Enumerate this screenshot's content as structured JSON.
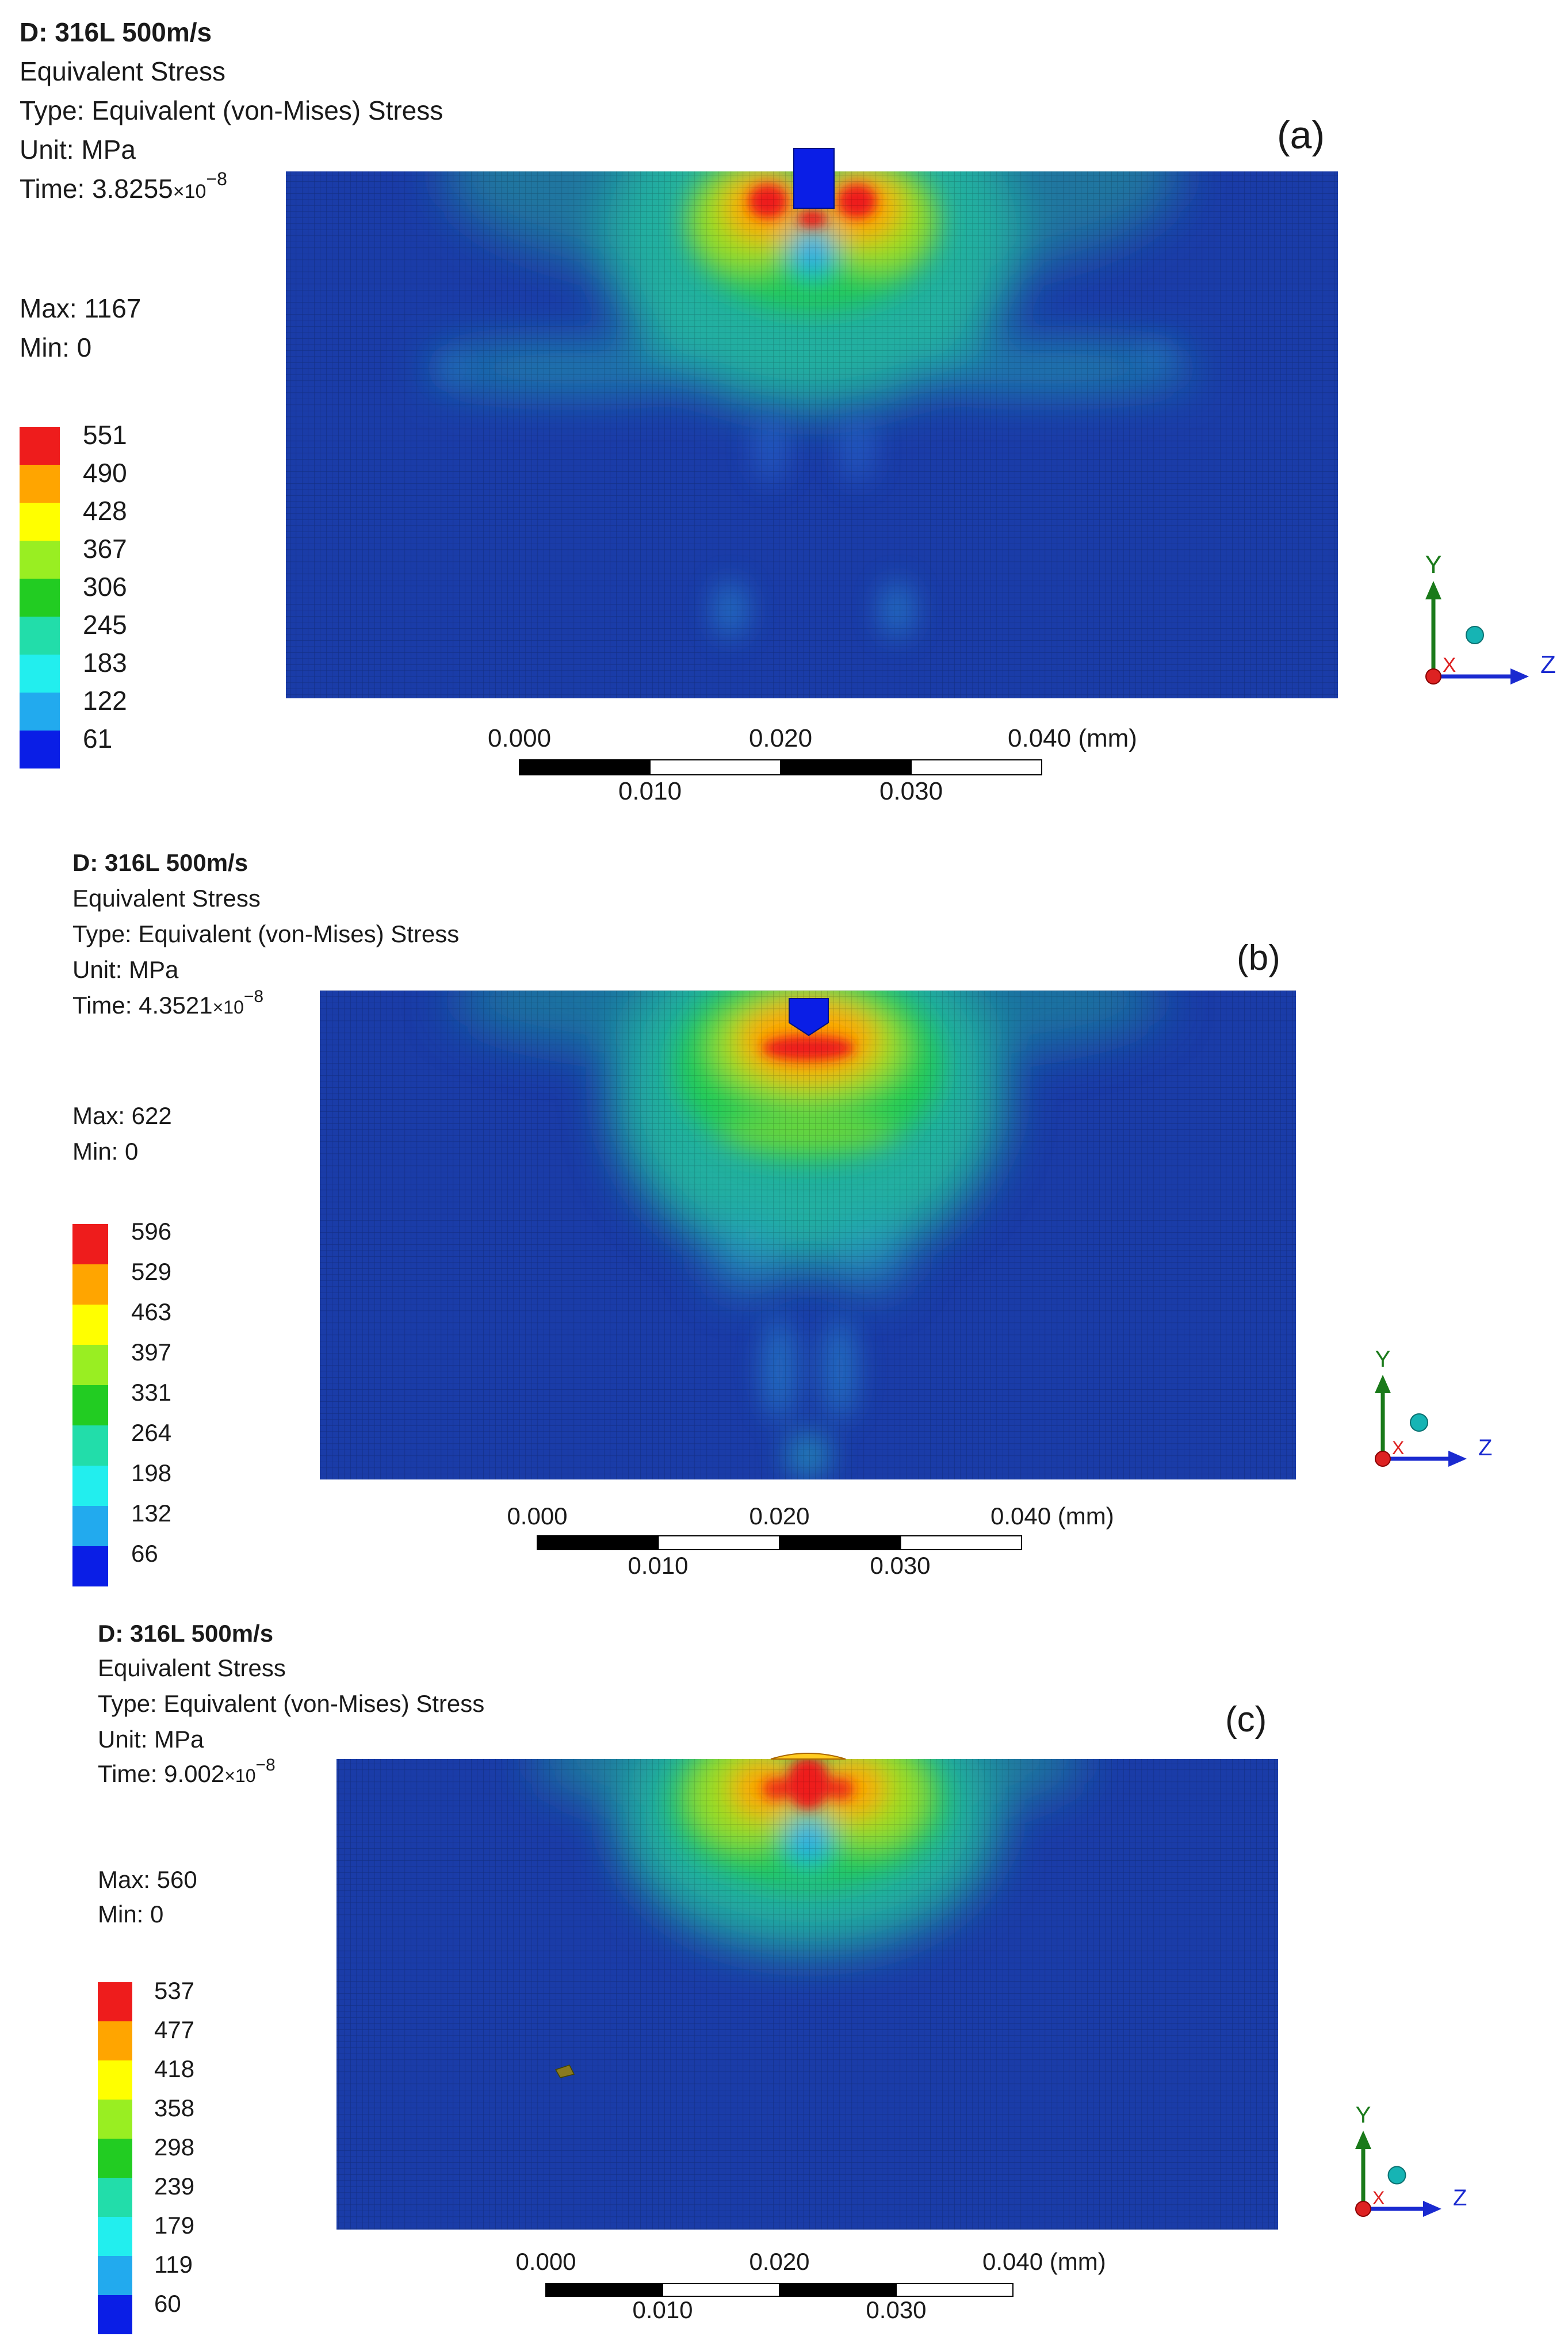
{
  "panels": [
    {
      "id": "a",
      "panel_label": "(a)",
      "header": {
        "title": "D: 316L 500m/s",
        "result": "Equivalent Stress",
        "type": "Type: Equivalent (von-Mises) Stress",
        "unit": "Unit: MPa",
        "time_prefix": "Time: 3.8255",
        "time_mult": "×10",
        "time_exp": "−8"
      },
      "max": "Max: 1167",
      "min": "Min: 0",
      "legend": [
        "551",
        "490",
        "428",
        "367",
        "306",
        "245",
        "183",
        "122",
        "61"
      ],
      "scale": {
        "top": [
          "0.000",
          "0.020",
          "0.040 (mm)"
        ],
        "bottom": [
          "0.010",
          "0.030"
        ]
      },
      "axes": {
        "y": "Y",
        "z": "Z",
        "x": "X"
      }
    },
    {
      "id": "b",
      "panel_label": "(b)",
      "header": {
        "title": "D: 316L 500m/s",
        "result": "Equivalent Stress",
        "type": "Type: Equivalent (von-Mises) Stress",
        "unit": "Unit: MPa",
        "time_prefix": "Time: 4.3521",
        "time_mult": "×10",
        "time_exp": "−8"
      },
      "max": "Max: 622",
      "min": "Min: 0",
      "legend": [
        "596",
        "529",
        "463",
        "397",
        "331",
        "264",
        "198",
        "132",
        "66"
      ],
      "scale": {
        "top": [
          "0.000",
          "0.020",
          "0.040 (mm)"
        ],
        "bottom": [
          "0.010",
          "0.030"
        ]
      },
      "axes": {
        "y": "Y",
        "z": "Z",
        "x": "X"
      }
    },
    {
      "id": "c",
      "panel_label": "(c)",
      "header": {
        "title": "D: 316L 500m/s",
        "result": "Equivalent Stress",
        "type": "Type: Equivalent (von-Mises) Stress",
        "unit": "Unit: MPa",
        "time_prefix": "Time: 9.002",
        "time_mult": "×10",
        "time_exp": "−8"
      },
      "max": "Max: 560",
      "min": "Min: 0",
      "legend": [
        "537",
        "477",
        "418",
        "358",
        "298",
        "239",
        "179",
        "119",
        "60"
      ],
      "scale": {
        "top": [
          "0.000",
          "0.020",
          "0.040 (mm)"
        ],
        "bottom": [
          "0.010",
          "0.030"
        ]
      },
      "axes": {
        "y": "Y",
        "z": "Z",
        "x": "X"
      }
    }
  ],
  "colors": {
    "legend_bands": [
      "#ee1c1c",
      "#ffa500",
      "#ffff00",
      "#99ee22",
      "#22cc22",
      "#22ddaa",
      "#22eeee",
      "#22aaee",
      "#0a1ee6"
    ],
    "field_base": "#1a3ca8",
    "axis_y": "#1a7a1a",
    "axis_z": "#1a2ad0",
    "axis_x": "#dd2222",
    "iso_sphere": "#16b4b4"
  }
}
